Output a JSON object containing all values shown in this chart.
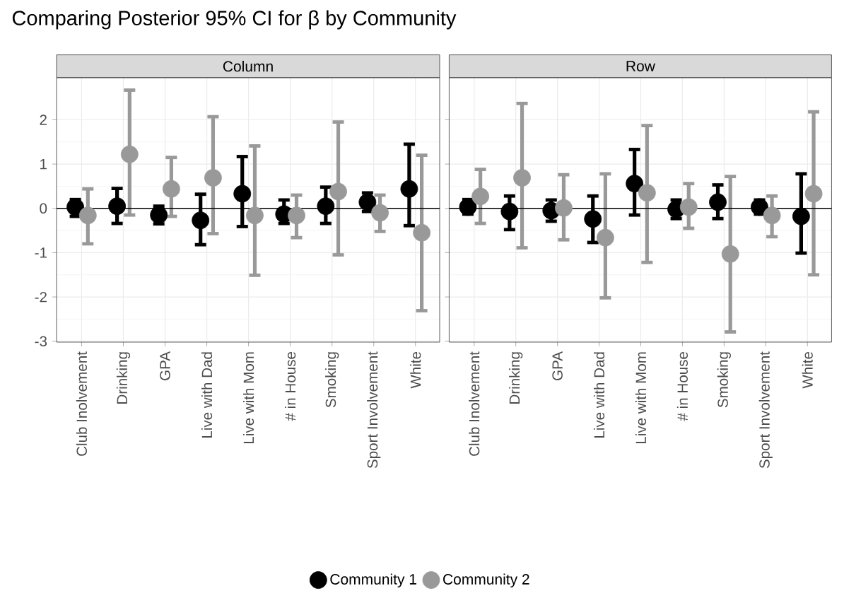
{
  "chart_data": [
    {
      "type": "scatter",
      "title": "Comparing Posterior 95% CI for β by Community",
      "subtitle": "Column",
      "categories": [
        "Club Inolvement",
        "Drinking",
        "GPA",
        "Live with Dad",
        "Live with Mom",
        "# in House",
        "Smoking",
        "Sport Involvement",
        "White"
      ],
      "series": [
        {
          "name": "Community 1",
          "color": "#000000",
          "values": [
            0.03,
            0.05,
            -0.15,
            -0.27,
            0.33,
            -0.13,
            0.05,
            0.14,
            0.44
          ],
          "errors": [
            [
              -0.18,
              0.2
            ],
            [
              -0.34,
              0.45
            ],
            [
              -0.35,
              0.05
            ],
            [
              -0.82,
              0.32
            ],
            [
              -0.41,
              1.17
            ],
            [
              -0.34,
              0.19
            ],
            [
              -0.34,
              0.48
            ],
            [
              -0.07,
              0.35
            ],
            [
              -0.39,
              1.45
            ]
          ]
        },
        {
          "name": "Community 2",
          "color": "#999999",
          "values": [
            -0.16,
            1.22,
            0.44,
            0.69,
            -0.16,
            -0.16,
            0.38,
            -0.1,
            -0.55
          ],
          "errors": [
            [
              -0.8,
              0.44
            ],
            [
              -0.15,
              2.67
            ],
            [
              -0.18,
              1.15
            ],
            [
              -0.57,
              2.07
            ],
            [
              -1.51,
              1.41
            ],
            [
              -0.66,
              0.3
            ],
            [
              -1.05,
              1.95
            ],
            [
              -0.52,
              0.3
            ],
            [
              -2.31,
              1.2
            ]
          ]
        }
      ],
      "ylim": [
        -3.02,
        2.95
      ],
      "yticks": [
        -3,
        -2,
        -1,
        0,
        1,
        2
      ],
      "grid": true,
      "legend": "bottom",
      "ref_lines": [
        {
          "axis": "y",
          "value": 0,
          "color": "#000000"
        }
      ]
    },
    {
      "type": "scatter",
      "subtitle": "Row",
      "categories": [
        "Club Inolvement",
        "Drinking",
        "GPA",
        "Live with Dad",
        "Live with Mom",
        "# in House",
        "Smoking",
        "Sport Involvement",
        "White"
      ],
      "series": [
        {
          "color": "#000000",
          "values": [
            0.03,
            -0.07,
            -0.05,
            -0.24,
            0.56,
            -0.02,
            0.14,
            0.03,
            -0.18
          ],
          "errors": [
            [
              -0.13,
              0.2
            ],
            [
              -0.48,
              0.28
            ],
            [
              -0.29,
              0.19
            ],
            [
              -0.77,
              0.28
            ],
            [
              -0.15,
              1.33
            ],
            [
              -0.23,
              0.19
            ],
            [
              -0.23,
              0.53
            ],
            [
              -0.13,
              0.19
            ],
            [
              -1.01,
              0.78
            ]
          ]
        },
        {
          "color": "#999999",
          "values": [
            0.27,
            0.69,
            0.01,
            -0.66,
            0.35,
            0.03,
            -1.03,
            -0.16,
            0.33
          ],
          "errors": [
            [
              -0.34,
              0.88
            ],
            [
              -0.89,
              2.37
            ],
            [
              -0.71,
              0.76
            ],
            [
              -2.02,
              0.78
            ],
            [
              -1.22,
              1.87
            ],
            [
              -0.45,
              0.56
            ],
            [
              -2.79,
              0.72
            ],
            [
              -0.64,
              0.28
            ],
            [
              -1.5,
              2.18
            ]
          ]
        }
      ],
      "ylim": [
        -3.02,
        2.95
      ],
      "yticks": [
        -3,
        -2,
        -1,
        0,
        1,
        2
      ],
      "grid": true,
      "tick_labels": "x",
      "ref_lines": [
        {
          "axis": "y",
          "value": 0,
          "color": "#000000"
        }
      ]
    }
  ]
}
